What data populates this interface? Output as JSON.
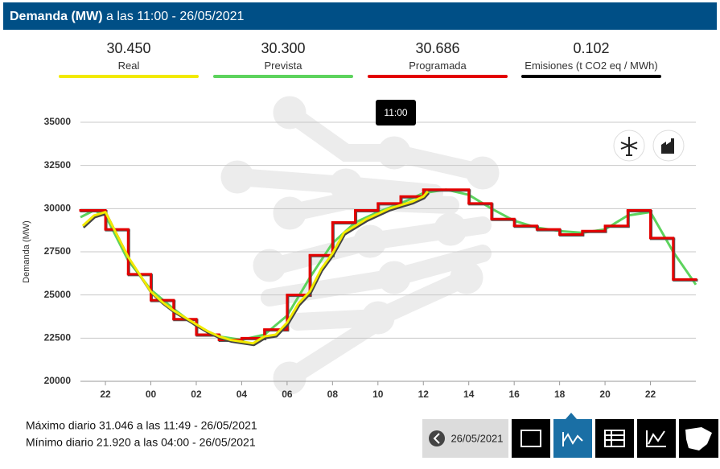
{
  "header": {
    "title": "Demanda (MW)",
    "subtitle": "a las 11:00 - 26/05/2021"
  },
  "emissions": {
    "value": 0.102,
    "label": "Emisiones (t CO2 eq / MWh)",
    "color": "#000000"
  },
  "chart_data": {
    "type": "line",
    "y_label": "Demanda (MW)",
    "tooltip": "11:00",
    "xlim": [
      20.9,
      48
    ],
    "xticks": [
      {
        "value": 22,
        "label": "22"
      },
      {
        "value": 24,
        "label": "00"
      },
      {
        "value": 26,
        "label": "02"
      },
      {
        "value": 28,
        "label": "04"
      },
      {
        "value": 30,
        "label": "06"
      },
      {
        "value": 32,
        "label": "08"
      },
      {
        "value": 34,
        "label": "10"
      },
      {
        "value": 36,
        "label": "12"
      },
      {
        "value": 38,
        "label": "14"
      },
      {
        "value": 40,
        "label": "16"
      },
      {
        "value": 42,
        "label": "18"
      },
      {
        "value": 44,
        "label": "20"
      },
      {
        "value": 46,
        "label": "22"
      }
    ],
    "ylim": [
      20000,
      35000
    ],
    "yticks": [
      20000,
      22500,
      25000,
      27500,
      30000,
      32500,
      35000
    ],
    "grid": true,
    "series": [
      {
        "name": "Real",
        "color": "#f2ea00",
        "latest": {
          "value": 30450,
          "label": "30.450"
        },
        "x": [
          21,
          21.5,
          22,
          22.5,
          23,
          23.5,
          24,
          24.5,
          25,
          25.5,
          26,
          26.5,
          27,
          27.5,
          28,
          28.5,
          29,
          29.5,
          30,
          30.5,
          31,
          31.5,
          32,
          32.5,
          33,
          33.5,
          34,
          34.5,
          35,
          35.5,
          36,
          36.2
        ],
        "values": [
          29000,
          29600,
          29800,
          28500,
          27200,
          26200,
          25200,
          24600,
          24100,
          23700,
          23300,
          22900,
          22600,
          22400,
          22300,
          22200,
          22600,
          22700,
          23400,
          24500,
          25200,
          26500,
          27400,
          28600,
          29000,
          29400,
          29700,
          30000,
          30200,
          30400,
          30700,
          31000
        ]
      },
      {
        "name": "Prevista",
        "color": "#5dd35d",
        "latest": {
          "value": 30300,
          "label": "30.300"
        },
        "x": [
          20.9,
          21.5,
          22,
          23,
          24,
          25,
          26,
          27,
          28,
          29,
          30,
          31,
          32,
          33,
          34,
          35,
          36,
          37,
          38,
          39,
          40,
          41,
          42,
          43,
          44,
          45,
          46,
          47,
          48
        ],
        "values": [
          29500,
          29900,
          29600,
          27000,
          25300,
          24200,
          23200,
          22600,
          22400,
          22700,
          23800,
          26000,
          28000,
          29200,
          29800,
          30300,
          30900,
          31100,
          30800,
          30000,
          29300,
          28900,
          28700,
          28600,
          28800,
          29600,
          29800,
          27500,
          25600
        ]
      },
      {
        "name": "Programada",
        "color": "#e30000",
        "step": true,
        "latest": {
          "value": 30686,
          "label": "30.686"
        },
        "x": [
          20.9,
          22,
          23,
          24,
          25,
          26,
          27,
          28,
          29,
          30,
          31,
          32,
          33,
          34,
          35,
          36,
          38,
          39,
          40,
          41,
          42,
          43,
          44,
          45,
          46,
          47
        ],
        "values": [
          29900,
          28800,
          26200,
          24700,
          23600,
          22700,
          22400,
          22500,
          23000,
          25000,
          27300,
          29200,
          29900,
          30300,
          30700,
          31100,
          30300,
          29400,
          29000,
          28800,
          28500,
          28700,
          29000,
          29900,
          28300,
          25900
        ]
      }
    ]
  },
  "footer": {
    "max": "Máximo diario 31.046 a las 11:49 - 26/05/2021",
    "min": "Mínimo diario 21.920 a las 04:00 - 26/05/2021",
    "date": "26/05/2021"
  }
}
